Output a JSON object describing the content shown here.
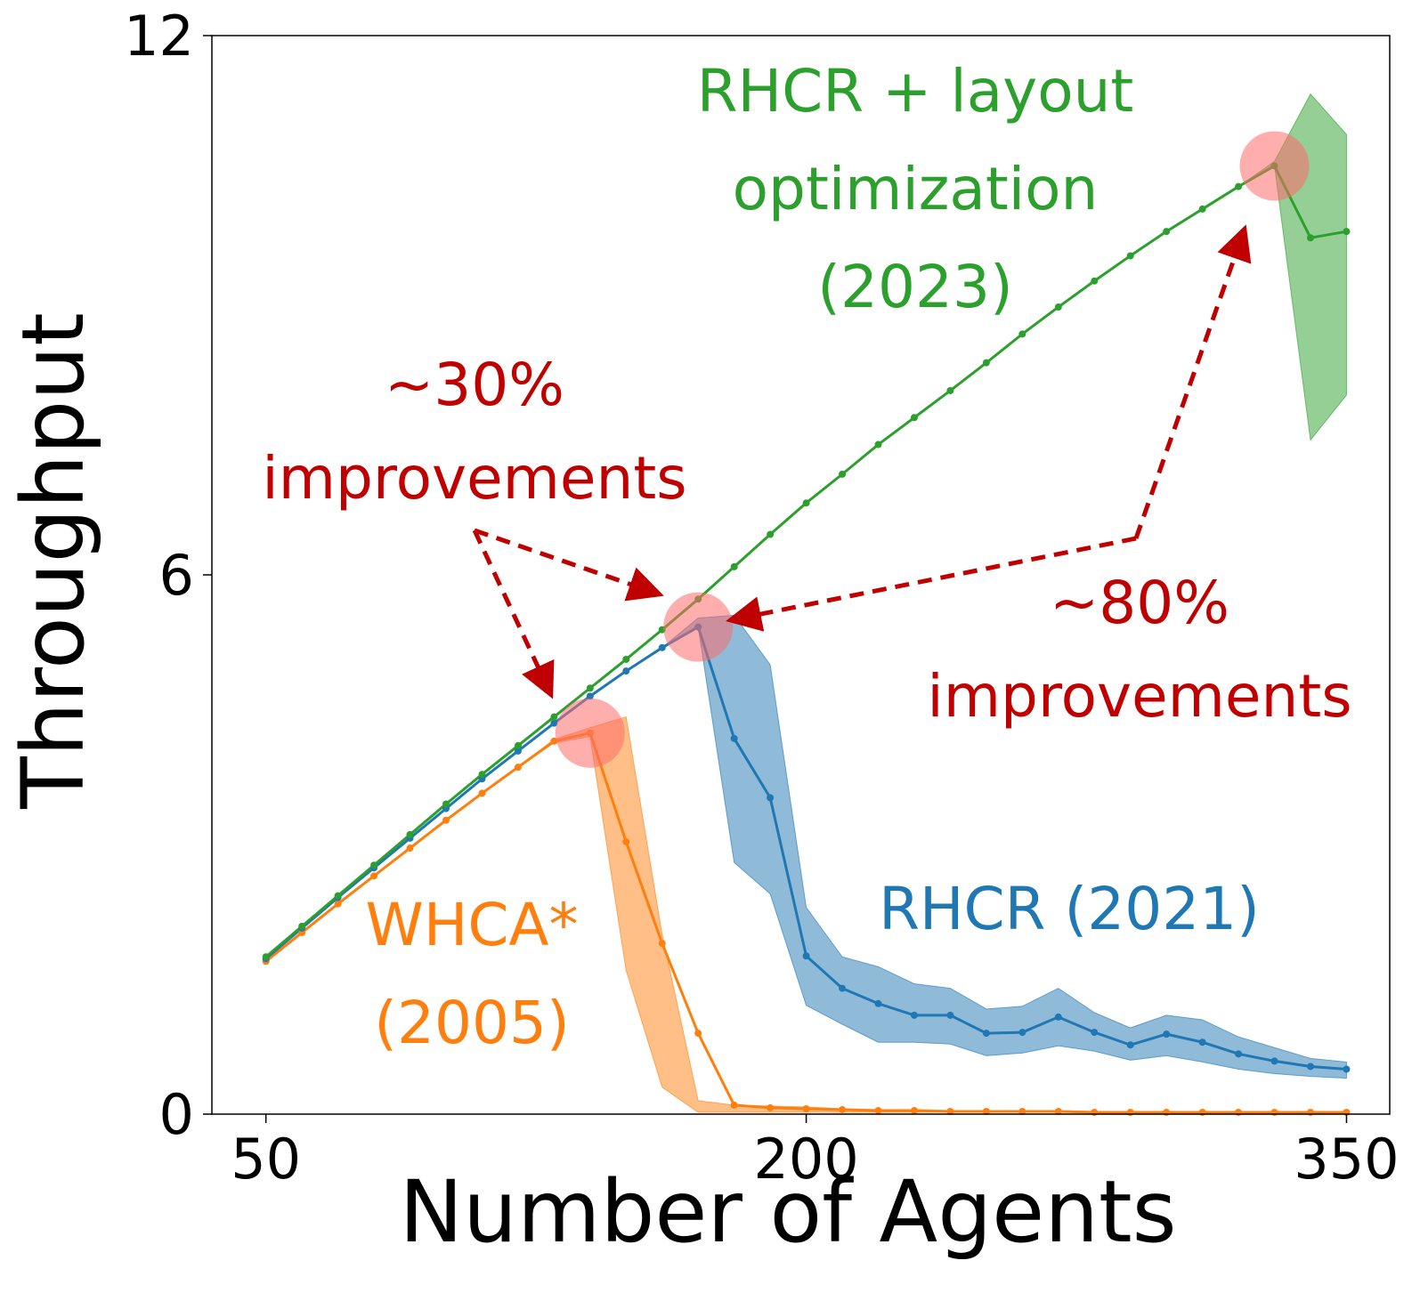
{
  "chart_data": {
    "type": "line",
    "xlabel": "Number of Agents",
    "ylabel": "Throughput",
    "xlim": [
      35,
      362
    ],
    "ylim": [
      0,
      12
    ],
    "xticks": [
      "50",
      "200",
      "350"
    ],
    "yticks": [
      "0",
      "6",
      "12"
    ],
    "grid": false,
    "x": [
      50,
      60,
      70,
      80,
      90,
      100,
      110,
      120,
      130,
      140,
      150,
      160,
      170,
      180,
      190,
      200,
      210,
      220,
      230,
      240,
      250,
      260,
      270,
      280,
      290,
      300,
      310,
      320,
      330,
      340,
      350
    ],
    "series": [
      {
        "name": "WHCA* (2005)",
        "color": "#ff7f0e",
        "values": [
          1.7,
          2.02,
          2.34,
          2.65,
          2.96,
          3.27,
          3.57,
          3.86,
          4.15,
          4.24,
          3.03,
          1.9,
          0.9,
          0.1,
          0.07,
          0.06,
          0.05,
          0.04,
          0.04,
          0.03,
          0.03,
          0.03,
          0.03,
          0.02,
          0.02,
          0.02,
          0.02,
          0.02,
          0.02,
          0.02,
          0.02
        ],
        "lower": [
          1.7,
          2.02,
          2.34,
          2.65,
          2.96,
          3.27,
          3.57,
          3.86,
          4.13,
          4.2,
          1.6,
          0.3,
          0.02,
          0.02,
          0.02,
          0.02,
          0.02,
          0.02,
          0.02,
          0.02,
          0.02,
          0.02,
          0.02,
          0.02,
          0.02,
          0.02,
          0.02,
          0.02,
          0.02,
          0.02,
          0.02
        ],
        "upper": [
          1.7,
          2.02,
          2.34,
          2.65,
          2.96,
          3.27,
          3.57,
          3.86,
          4.17,
          4.3,
          4.42,
          2.0,
          0.15,
          0.1,
          0.09,
          0.08,
          0.06,
          0.05,
          0.05,
          0.04,
          0.04,
          0.04,
          0.04,
          0.03,
          0.03,
          0.03,
          0.03,
          0.03,
          0.03,
          0.03,
          0.03
        ]
      },
      {
        "name": "RHCR (2021)",
        "color": "#1f77b4",
        "values": [
          1.73,
          2.07,
          2.41,
          2.74,
          3.07,
          3.4,
          3.73,
          4.04,
          4.35,
          4.65,
          4.93,
          5.19,
          5.42,
          4.18,
          3.52,
          1.76,
          1.4,
          1.23,
          1.1,
          1.1,
          0.9,
          0.91,
          1.08,
          0.91,
          0.77,
          0.89,
          0.8,
          0.67,
          0.59,
          0.53,
          0.5
        ],
        "lower": [
          1.73,
          2.07,
          2.41,
          2.74,
          3.07,
          3.4,
          3.73,
          4.04,
          4.35,
          4.65,
          4.93,
          5.19,
          5.42,
          2.8,
          2.45,
          1.21,
          1.0,
          0.8,
          0.8,
          0.78,
          0.65,
          0.68,
          0.76,
          0.7,
          0.6,
          0.65,
          0.58,
          0.5,
          0.45,
          0.42,
          0.4
        ],
        "upper": [
          1.73,
          2.07,
          2.41,
          2.74,
          3.07,
          3.4,
          3.73,
          4.04,
          4.35,
          4.65,
          4.93,
          5.19,
          5.52,
          5.55,
          5.0,
          2.3,
          1.75,
          1.64,
          1.45,
          1.4,
          1.17,
          1.2,
          1.4,
          1.13,
          0.96,
          1.1,
          1.05,
          0.86,
          0.74,
          0.62,
          0.58
        ]
      },
      {
        "name": "RHCR + layout optimization (2023)",
        "color": "#2ca02c",
        "values": [
          1.75,
          2.09,
          2.43,
          2.77,
          3.11,
          3.45,
          3.78,
          4.1,
          4.42,
          4.74,
          5.06,
          5.39,
          5.73,
          6.09,
          6.45,
          6.8,
          7.12,
          7.45,
          7.75,
          8.05,
          8.36,
          8.68,
          8.98,
          9.27,
          9.55,
          9.82,
          10.07,
          10.32,
          10.55,
          9.75,
          9.82
        ],
        "lower": [
          1.75,
          2.09,
          2.43,
          2.77,
          3.11,
          3.45,
          3.78,
          4.1,
          4.42,
          4.74,
          5.06,
          5.39,
          5.73,
          6.09,
          6.45,
          6.8,
          7.12,
          7.45,
          7.75,
          8.05,
          8.36,
          8.68,
          8.98,
          9.27,
          9.55,
          9.82,
          10.07,
          10.32,
          10.55,
          7.5,
          8.0
        ],
        "upper": [
          1.75,
          2.09,
          2.43,
          2.77,
          3.11,
          3.45,
          3.78,
          4.1,
          4.42,
          4.74,
          5.06,
          5.39,
          5.73,
          6.09,
          6.45,
          6.8,
          7.12,
          7.45,
          7.75,
          8.05,
          8.36,
          8.68,
          8.98,
          9.27,
          9.55,
          9.82,
          10.07,
          10.32,
          10.6,
          11.35,
          10.9
        ]
      }
    ],
    "labels": {
      "whca_line1": "WHCA*",
      "whca_line2": "(2005)",
      "rhcr": "RHCR (2021)",
      "opt_line1": "RHCR + layout",
      "opt_line2": "optimization",
      "opt_line3": "(2023)"
    },
    "highlights": [
      {
        "x": 140,
        "y": 4.24
      },
      {
        "x": 170,
        "y": 5.42
      },
      {
        "x": 330,
        "y": 10.55
      }
    ],
    "annotations": {
      "left_line1": "~30%",
      "left_line2": "improvements",
      "right_line1": "~80%",
      "right_line2": "improvements",
      "color": "#c00000",
      "highlight_color": "#ff6b6b"
    }
  }
}
